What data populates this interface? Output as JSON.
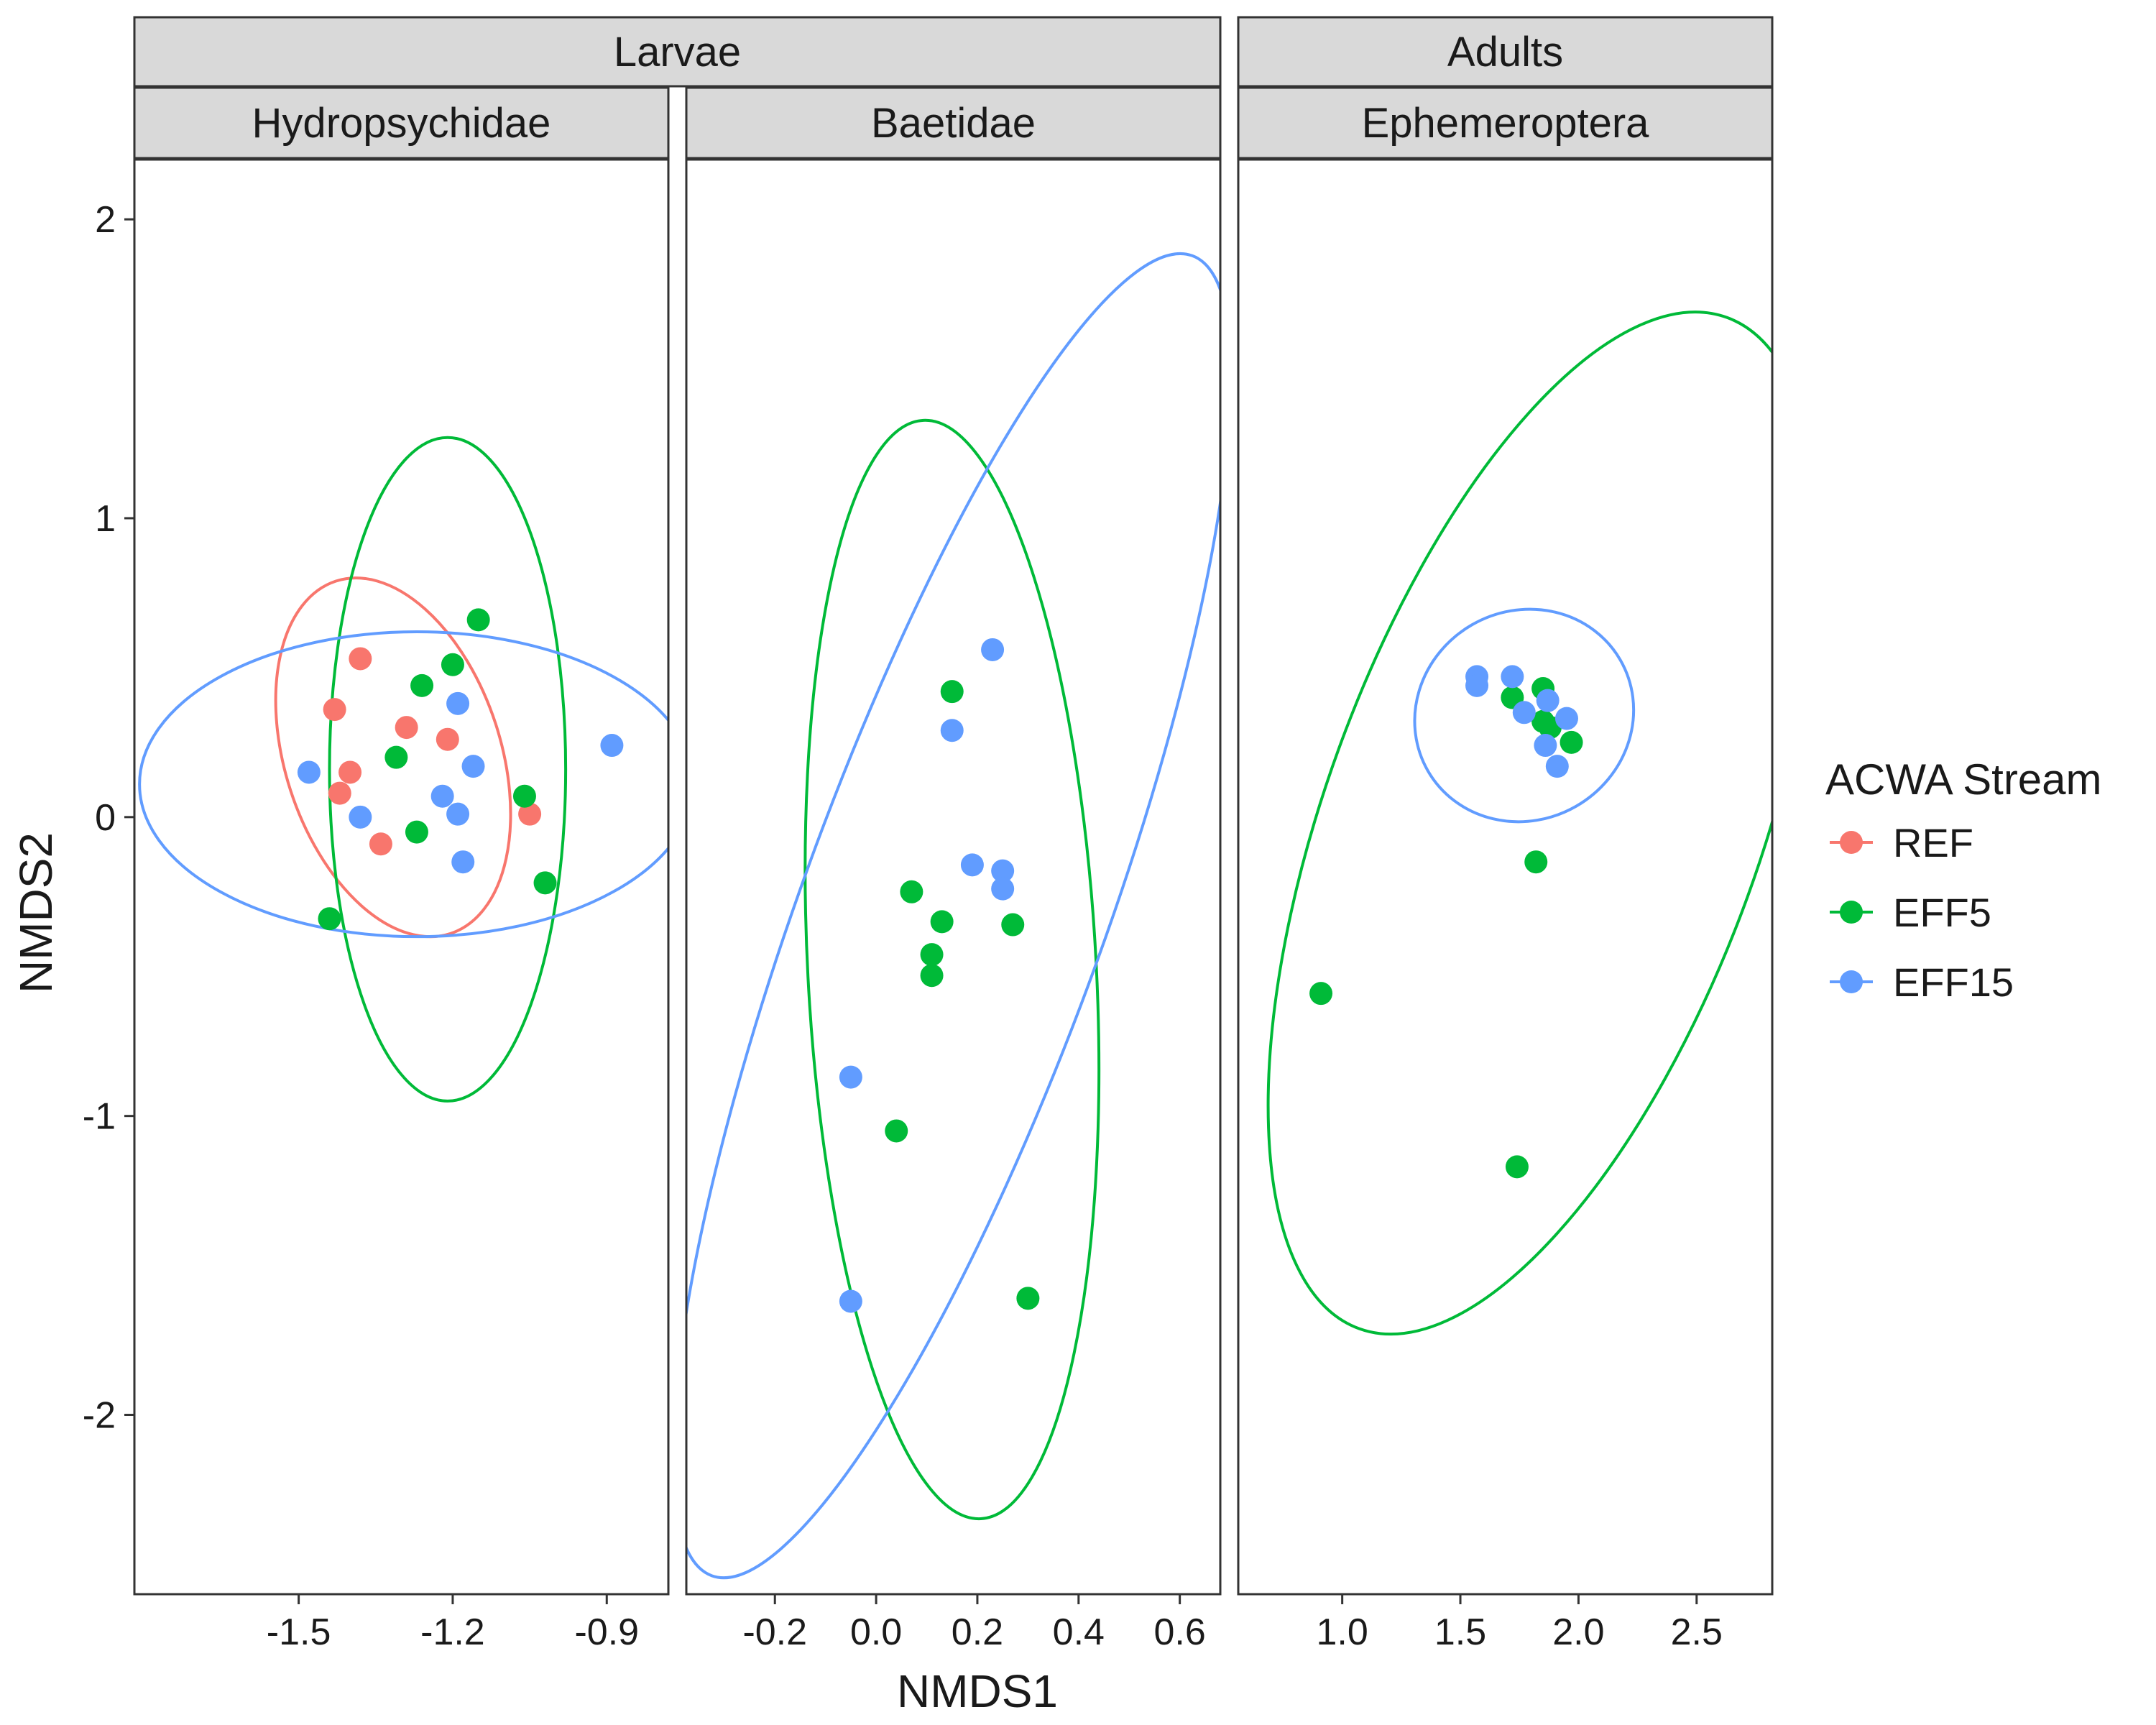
{
  "chart_data": {
    "type": "scatter",
    "xlabel": "NMDS1",
    "ylabel": "NMDS2",
    "ylim": [
      -2.6,
      2.2
    ],
    "y_ticks": [
      "2",
      "1",
      "0",
      "-1",
      "-2"
    ],
    "y_tick_values": [
      2,
      1,
      0,
      -1,
      -2
    ],
    "group_strips": [
      {
        "label": "Larvae",
        "panels": [
          0,
          1
        ]
      },
      {
        "label": "Adults",
        "panels": [
          2
        ]
      }
    ],
    "legend": {
      "title": "ACWA Stream",
      "position": "right",
      "items": [
        {
          "label": "REF",
          "color": "#F8766D"
        },
        {
          "label": "EFF5",
          "color": "#00BA38"
        },
        {
          "label": "EFF15",
          "color": "#619CFF"
        }
      ]
    },
    "panels": [
      {
        "title": "Hydropsychidae",
        "xlim": [
          -1.82,
          -0.78
        ],
        "x_ticks": [
          "-1.5",
          "-1.2",
          "-0.9"
        ],
        "x_tick_values": [
          -1.5,
          -1.2,
          -0.9
        ],
        "points": {
          "REF": [
            [
              -1.38,
              0.53
            ],
            [
              -1.43,
              0.36
            ],
            [
              -1.4,
              0.15
            ],
            [
              -1.42,
              0.08
            ],
            [
              -1.29,
              0.3
            ],
            [
              -1.21,
              0.26
            ],
            [
              -1.34,
              -0.09
            ],
            [
              -1.05,
              0.01
            ]
          ],
          "EFF5": [
            [
              -1.15,
              0.66
            ],
            [
              -1.2,
              0.51
            ],
            [
              -1.26,
              0.44
            ],
            [
              -1.31,
              0.2
            ],
            [
              -1.27,
              -0.05
            ],
            [
              -1.06,
              0.07
            ],
            [
              -1.02,
              -0.22
            ],
            [
              -1.44,
              -0.34
            ]
          ],
          "EFF15": [
            [
              -1.48,
              0.15
            ],
            [
              -1.38,
              0.0
            ],
            [
              -1.19,
              0.38
            ],
            [
              -1.16,
              0.17
            ],
            [
              -1.22,
              0.07
            ],
            [
              -1.19,
              0.01
            ],
            [
              -1.18,
              -0.15
            ],
            [
              -0.89,
              0.24
            ]
          ]
        },
        "ellipses": {
          "REF": {
            "cx": -1.316,
            "cy": 0.2,
            "rx": 0.21,
            "ry": 0.62
          },
          "EFF5": {
            "cx": -1.21,
            "cy": 0.16,
            "rx": 0.23,
            "ry": 1.11
          },
          "EFF15": {
            "cx": -1.27,
            "cy": 0.11,
            "rx": 0.54,
            "ry": 0.51
          }
        }
      },
      {
        "title": "Baetidae",
        "xlim": [
          -0.375,
          0.68
        ],
        "x_ticks": [
          "-0.2",
          "0.0",
          "0.2",
          "0.4",
          "0.6"
        ],
        "x_tick_values": [
          -0.2,
          0.0,
          0.2,
          0.4,
          0.6
        ],
        "points": {
          "EFF5": [
            [
              0.15,
              0.42
            ],
            [
              0.07,
              -0.25
            ],
            [
              0.13,
              -0.35
            ],
            [
              0.11,
              -0.46
            ],
            [
              0.11,
              -0.53
            ],
            [
              0.27,
              -0.36
            ],
            [
              0.04,
              -1.05
            ],
            [
              0.3,
              -1.61
            ]
          ],
          "EFF15": [
            [
              0.23,
              0.56
            ],
            [
              0.15,
              0.29
            ],
            [
              0.19,
              -0.16
            ],
            [
              0.25,
              -0.18
            ],
            [
              0.25,
              -0.24
            ],
            [
              -0.05,
              -0.87
            ],
            [
              -0.05,
              -1.62
            ]
          ]
        },
        "ellipses": {
          "EFF5": {
            "cx": 0.15,
            "cy": -0.51,
            "rx": 0.285,
            "ry": 1.84
          },
          "EFF15": {
            "cx": 0.15,
            "cy": -0.33,
            "rx": 0.3,
            "ry": 2.35
          }
        }
      },
      {
        "title": "Ephemeroptera",
        "xlim": [
          0.56,
          2.82
        ],
        "x_ticks": [
          "1.0",
          "1.5",
          "2.0",
          "2.5"
        ],
        "x_tick_values": [
          1.0,
          1.5,
          2.0,
          2.5
        ],
        "points": {
          "EFF5": [
            [
              1.72,
              0.4
            ],
            [
              1.85,
              0.43
            ],
            [
              1.85,
              0.32
            ],
            [
              1.88,
              0.3
            ],
            [
              1.97,
              0.25
            ],
            [
              1.82,
              -0.15
            ],
            [
              0.91,
              -0.59
            ],
            [
              1.74,
              -1.17
            ]
          ],
          "EFF15": [
            [
              1.57,
              0.47
            ],
            [
              1.57,
              0.44
            ],
            [
              1.72,
              0.47
            ],
            [
              1.77,
              0.35
            ],
            [
              1.87,
              0.39
            ],
            [
              1.95,
              0.33
            ],
            [
              1.86,
              0.24
            ],
            [
              1.91,
              0.17
            ]
          ]
        },
        "ellipses": {
          "EFF5": {
            "cx": 1.85,
            "cy": -0.02,
            "rx": 0.92,
            "ry": 1.8
          },
          "EFF15": {
            "cx": 1.77,
            "cy": 0.34,
            "rx": 0.47,
            "ry": 0.35
          }
        }
      }
    ]
  }
}
